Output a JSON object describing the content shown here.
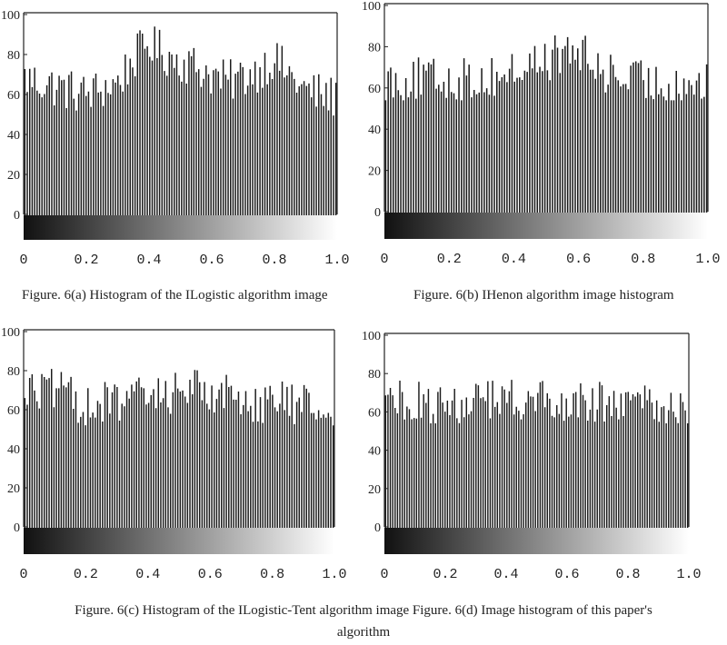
{
  "chart_data": [
    {
      "type": "bar",
      "panel": "a",
      "x": {
        "ticks": [
          "0",
          "0.2",
          "0.4",
          "0.6",
          "0.8",
          "1.0"
        ],
        "range": [
          0,
          1.0
        ]
      },
      "y": {
        "ticks": [
          "0",
          "20",
          "40",
          "60",
          "80",
          "100"
        ],
        "range": [
          0,
          100
        ]
      },
      "colorbar": "black-to-white gradient",
      "bins": 128,
      "profile": [
        [
          0,
          68
        ],
        [
          0.1,
          64
        ],
        [
          0.2,
          60
        ],
        [
          0.3,
          66
        ],
        [
          0.35,
          78
        ],
        [
          0.4,
          86
        ],
        [
          0.45,
          80
        ],
        [
          0.55,
          74
        ],
        [
          0.65,
          66
        ],
        [
          0.75,
          72
        ],
        [
          0.8,
          78
        ],
        [
          0.9,
          62
        ],
        [
          1.0,
          58
        ]
      ],
      "range_low": 46,
      "range_high": 94,
      "caption": "Figure. 6(a) Histogram of the ILogistic algorithm image"
    },
    {
      "type": "bar",
      "panel": "b",
      "x": {
        "ticks": [
          "0",
          "0.2",
          "0.4",
          "0.6",
          "0.8",
          "1.0"
        ],
        "range": [
          0,
          1.0
        ]
      },
      "y": {
        "ticks": [
          "0",
          "20",
          "40",
          "60",
          "80",
          "100"
        ],
        "range": [
          0,
          100
        ]
      },
      "colorbar": "black-to-white gradient",
      "bins": 128,
      "profile": [
        [
          0,
          64
        ],
        [
          0.15,
          64
        ],
        [
          0.3,
          64
        ],
        [
          0.4,
          68
        ],
        [
          0.5,
          74
        ],
        [
          0.6,
          78
        ],
        [
          0.65,
          70
        ],
        [
          0.75,
          64
        ],
        [
          0.85,
          62
        ],
        [
          1.0,
          62
        ]
      ],
      "range_low": 54,
      "range_high": 88,
      "caption": "Figure. 6(b) IHenon algorithm image histogram"
    },
    {
      "type": "bar",
      "panel": "c",
      "x": {
        "ticks": [
          "0",
          "0.2",
          "0.4",
          "0.6",
          "0.8",
          "1.0"
        ],
        "range": [
          0,
          1.0
        ]
      },
      "y": {
        "ticks": [
          "0",
          "20",
          "40",
          "60",
          "80",
          "100"
        ],
        "range": [
          0,
          100
        ]
      },
      "colorbar": "black-to-white gradient",
      "bins": 128,
      "profile": [
        [
          0,
          70
        ],
        [
          0.1,
          70
        ],
        [
          0.2,
          62
        ],
        [
          0.3,
          64
        ],
        [
          0.45,
          68
        ],
        [
          0.55,
          72
        ],
        [
          0.65,
          68
        ],
        [
          0.75,
          64
        ],
        [
          0.85,
          64
        ],
        [
          1.0,
          60
        ]
      ],
      "range_low": 52,
      "range_high": 84,
      "caption": "Figure. 6(c) Histogram of the ILogistic-Tent algorithm image"
    },
    {
      "type": "bar",
      "panel": "d",
      "x": {
        "ticks": [
          "0",
          "0.2",
          "0.4",
          "0.6",
          "0.8",
          "1.0"
        ],
        "range": [
          0,
          1.0
        ]
      },
      "y": {
        "ticks": [
          "0",
          "20",
          "40",
          "60",
          "80",
          "100"
        ],
        "range": [
          0,
          100
        ]
      },
      "colorbar": "black-to-white gradient",
      "bins": 128,
      "profile": [
        [
          0,
          66
        ],
        [
          0.2,
          64
        ],
        [
          0.4,
          66
        ],
        [
          0.6,
          66
        ],
        [
          0.8,
          64
        ],
        [
          1.0,
          62
        ]
      ],
      "range_low": 54,
      "range_high": 78,
      "caption": "Figure. 6(d) Image histogram of this paper's algorithm"
    }
  ],
  "captions": {
    "a": "Figure. 6(a) Histogram of the ILogistic algorithm image",
    "b": "Figure. 6(b) IHenon algorithm image histogram",
    "cd_line1": "Figure. 6(c) Histogram of the ILogistic-Tent algorithm image Figure. 6(d) Image histogram of this paper's",
    "cd_line2": "algorithm"
  }
}
